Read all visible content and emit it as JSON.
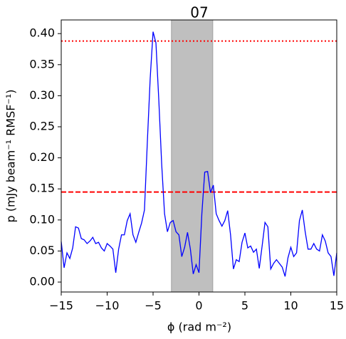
{
  "chart_data": {
    "type": "line",
    "title": "07",
    "x_label": "ϕ (rad m⁻²)",
    "y_label": "p (mJy beam⁻¹ RMSF⁻¹)",
    "xlim": [
      -15,
      15
    ],
    "ylim": [
      -0.016,
      0.422
    ],
    "xticks": [
      {
        "value": -15,
        "label": "−15"
      },
      {
        "value": -10,
        "label": "−10"
      },
      {
        "value": -5,
        "label": "−5"
      },
      0,
      5,
      10,
      15
    ],
    "yticks": [
      {
        "value": 0,
        "label": "0.00"
      },
      {
        "value": 0.05,
        "label": "0.05"
      },
      {
        "value": 0.1,
        "label": "0.10"
      },
      {
        "value": 0.15,
        "label": "0.15"
      },
      {
        "value": 0.2,
        "label": "0.20"
      },
      {
        "value": 0.25,
        "label": "0.25"
      },
      {
        "value": 0.3,
        "label": "0.30"
      },
      {
        "value": 0.35,
        "label": "0.35"
      },
      {
        "value": 0.4,
        "label": "0.40"
      }
    ],
    "x": [
      -15,
      -14.6875,
      -14.375,
      -14.0625,
      -13.75,
      -13.4375,
      -13.125,
      -12.8125,
      -12.5,
      -12.1875,
      -11.875,
      -11.5625,
      -11.25,
      -10.9375,
      -10.625,
      -10.3125,
      -10,
      -9.6875,
      -9.375,
      -9.0625,
      -8.75,
      -8.4375,
      -8.125,
      -7.8125,
      -7.5,
      -7.1875,
      -6.875,
      -6.5625,
      -6.25,
      -5.9375,
      -5.625,
      -5.3125,
      -5,
      -4.6875,
      -4.375,
      -4.0625,
      -3.75,
      -3.4375,
      -3.125,
      -2.8125,
      -2.5,
      -2.1875,
      -1.875,
      -1.5625,
      -1.25,
      -0.9375,
      -0.625,
      -0.3125,
      0,
      0.3125,
      0.625,
      0.9375,
      1.25,
      1.5625,
      1.875,
      2.1875,
      2.5,
      2.8125,
      3.125,
      3.4375,
      3.75,
      4.0625,
      4.375,
      4.6875,
      5,
      5.3125,
      5.625,
      5.9375,
      6.25,
      6.5625,
      6.875,
      7.1875,
      7.5,
      7.8125,
      8.125,
      8.4375,
      8.75,
      9.0625,
      9.375,
      9.6875,
      10,
      10.3125,
      10.625,
      10.9375,
      11.25,
      11.5625,
      11.875,
      12.1875,
      12.5,
      12.8125,
      13.125,
      13.4375,
      13.75,
      14.0625,
      14.375,
      14.6875,
      15
    ],
    "series": [
      {
        "color": "#0000ff",
        "values": [
          0.065,
          0.023,
          0.047,
          0.038,
          0.055,
          0.089,
          0.087,
          0.07,
          0.068,
          0.062,
          0.066,
          0.072,
          0.062,
          0.064,
          0.055,
          0.05,
          0.062,
          0.058,
          0.053,
          0.015,
          0.053,
          0.076,
          0.076,
          0.099,
          0.11,
          0.076,
          0.064,
          0.08,
          0.095,
          0.116,
          0.225,
          0.328,
          0.403,
          0.385,
          0.293,
          0.19,
          0.11,
          0.081,
          0.096,
          0.099,
          0.081,
          0.076,
          0.041,
          0.056,
          0.08,
          0.053,
          0.013,
          0.028,
          0.015,
          0.11,
          0.177,
          0.178,
          0.144,
          0.156,
          0.11,
          0.099,
          0.09,
          0.099,
          0.115,
          0.076,
          0.021,
          0.036,
          0.033,
          0.064,
          0.079,
          0.055,
          0.058,
          0.048,
          0.053,
          0.022,
          0.058,
          0.096,
          0.089,
          0.021,
          0.03,
          0.036,
          0.03,
          0.024,
          0.009,
          0.039,
          0.056,
          0.041,
          0.047,
          0.099,
          0.116,
          0.081,
          0.053,
          0.053,
          0.062,
          0.053,
          0.05,
          0.076,
          0.066,
          0.047,
          0.041,
          0.01,
          0.047
        ]
      }
    ],
    "hlines": [
      {
        "value": 0.388,
        "color": "#ff0000",
        "style": "dotted"
      },
      {
        "value": 0.145,
        "color": "#ff0000",
        "style": "dashed"
      }
    ],
    "span": {
      "range": [
        -3,
        1.5
      ],
      "color": "#bfbfbf"
    }
  }
}
